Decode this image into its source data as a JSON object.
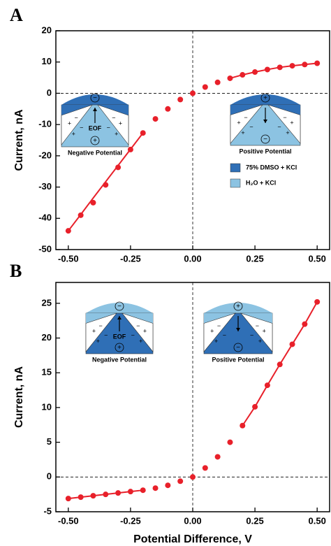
{
  "chart_data": [
    {
      "type": "scatter",
      "panel_label": "A",
      "ylabel": "Current, nA",
      "x": [
        -0.5,
        -0.45,
        -0.4,
        -0.35,
        -0.3,
        -0.25,
        -0.2,
        -0.15,
        -0.1,
        -0.05,
        0,
        0.05,
        0.1,
        0.15,
        0.2,
        0.25,
        0.3,
        0.35,
        0.4,
        0.45,
        0.5
      ],
      "series": [
        {
          "type": "line",
          "color": "#e8202a",
          "values": [
            -44,
            -38.8,
            -33.5,
            -28.3,
            -23.1,
            -17.9,
            -12.7,
            null,
            null,
            null,
            null,
            null,
            null,
            4.8,
            5.9,
            6.8,
            7.6,
            8.3,
            8.8,
            9.2,
            9.6
          ]
        },
        {
          "type": "scatter",
          "color": "#e8202a",
          "values": [
            -44,
            -39,
            -35,
            -29.3,
            -23.7,
            -18,
            -12.7,
            -8.2,
            -5,
            -2,
            0,
            2,
            3.5,
            4.8,
            5.9,
            6.8,
            7.6,
            8.3,
            8.8,
            9.2,
            9.6
          ]
        }
      ],
      "xlim": [
        -0.55,
        0.55
      ],
      "xticks": [
        {
          "value": -0.5,
          "label": "-0.50"
        },
        -0.25,
        {
          "value": 0,
          "label": "0.00"
        },
        0.25,
        {
          "value": 0.5,
          "label": "0.50"
        }
      ],
      "ylim": [
        -50,
        20
      ],
      "yticks": [
        -50,
        -40,
        -30,
        -20,
        -10,
        0,
        10,
        20
      ],
      "annotations": [
        "EOF",
        "Negative Potential",
        "Positive Potential"
      ],
      "inset_legend": [
        {
          "label": "75% DMSO + KCl",
          "color": "#2f6fb6"
        },
        {
          "label": "H₂O + KCl",
          "color": "#8cc3e2"
        }
      ]
    },
    {
      "type": "scatter",
      "panel_label": "B",
      "ylabel": "Current, nA",
      "xlabel": "Potential Difference, V",
      "x": [
        -0.5,
        -0.45,
        -0.4,
        -0.35,
        -0.3,
        -0.25,
        -0.2,
        -0.15,
        -0.1,
        -0.05,
        0,
        0.05,
        0.1,
        0.15,
        0.2,
        0.25,
        0.3,
        0.35,
        0.4,
        0.45,
        0.5
      ],
      "series": [
        {
          "type": "line",
          "color": "#e8202a",
          "values": [
            -3.1,
            -2.9,
            -2.7,
            -2.5,
            -2.3,
            -2.1,
            -1.9,
            null,
            null,
            null,
            null,
            null,
            null,
            null,
            7.4,
            10.1,
            13.2,
            16.2,
            19.1,
            22,
            25.2
          ]
        },
        {
          "type": "scatter",
          "color": "#e8202a",
          "values": [
            -3.1,
            -2.9,
            -2.7,
            -2.5,
            -2.3,
            -2.1,
            -1.9,
            -1.6,
            -1.2,
            -0.6,
            0,
            1.3,
            2.9,
            5,
            7.4,
            10.1,
            13.2,
            16.2,
            19.1,
            22,
            25.2
          ]
        }
      ],
      "xlim": [
        -0.55,
        0.55
      ],
      "xticks": [
        {
          "value": -0.5,
          "label": "-0.50"
        },
        -0.25,
        {
          "value": 0,
          "label": "0.00"
        },
        0.25,
        {
          "value": 0.5,
          "label": "0.50"
        }
      ],
      "ylim": [
        -5,
        28
      ],
      "yticks": [
        -5,
        0,
        5,
        10,
        15,
        20,
        25
      ],
      "annotations": [
        "EOF",
        "Negative Potential",
        "Positive Potential"
      ]
    }
  ]
}
